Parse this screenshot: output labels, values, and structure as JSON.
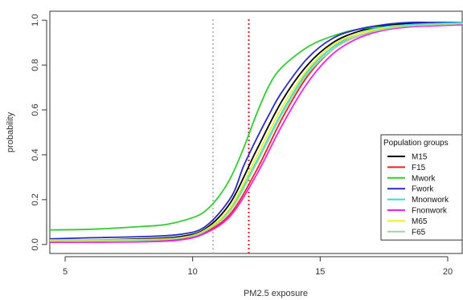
{
  "chart_data": {
    "type": "line",
    "title": "",
    "xlabel": "PM2.5 exposure",
    "ylabel": "probability",
    "xlim": [
      4.4,
      20.6
    ],
    "ylim": [
      -0.04,
      1.04
    ],
    "xticks": [
      5,
      10,
      15,
      20
    ],
    "yticks": [
      0.0,
      0.2,
      0.4,
      0.6,
      0.8,
      1.0
    ],
    "xtick_labels": [
      "5",
      "10",
      "15",
      "20"
    ],
    "ytick_labels": [
      "0.0",
      "0.2",
      "0.4",
      "0.6",
      "0.8",
      "1.0"
    ],
    "grid": false,
    "legend": {
      "title": "Population groups",
      "placement": "bottom-right"
    },
    "reference_lines": [
      {
        "x": 10.8,
        "color": "#bbbbbb",
        "style": "dotted"
      },
      {
        "x": 12.2,
        "color": "#e02020",
        "style": "dotted"
      }
    ],
    "series": [
      {
        "name": "M15",
        "color": "#000000",
        "x": [
          4.4,
          6,
          8,
          9.5,
          10.5,
          11.5,
          12.5,
          13.5,
          14.5,
          15.5,
          16.5,
          17.5,
          18.5,
          19.5,
          20.6
        ],
        "y": [
          0.02,
          0.02,
          0.025,
          0.035,
          0.07,
          0.19,
          0.42,
          0.64,
          0.8,
          0.9,
          0.95,
          0.975,
          0.985,
          0.99,
          0.99
        ]
      },
      {
        "name": "F15",
        "color": "#ee2020",
        "x": [
          4.4,
          6,
          8,
          9.5,
          10.5,
          11.5,
          12.5,
          13.5,
          14.5,
          15.5,
          16.5,
          17.5,
          18.5,
          19.5,
          20.6
        ],
        "y": [
          0.01,
          0.01,
          0.015,
          0.025,
          0.055,
          0.14,
          0.33,
          0.56,
          0.75,
          0.87,
          0.93,
          0.96,
          0.975,
          0.98,
          0.985
        ]
      },
      {
        "name": "Mwork",
        "color": "#33cc33",
        "x": [
          4.4,
          6,
          8,
          9,
          10,
          10.5,
          11,
          11.5,
          12,
          12.5,
          13,
          13.5,
          14.5,
          15.5,
          16.5,
          17.5,
          18.5,
          19.5,
          20.6
        ],
        "y": [
          0.065,
          0.068,
          0.08,
          0.09,
          0.12,
          0.15,
          0.21,
          0.3,
          0.43,
          0.58,
          0.71,
          0.79,
          0.88,
          0.93,
          0.96,
          0.97,
          0.975,
          0.98,
          0.98
        ]
      },
      {
        "name": "Fwork",
        "color": "#2a2ac8",
        "x": [
          4.4,
          6,
          8,
          9.5,
          10.5,
          11.5,
          12,
          12.5,
          13,
          13.5,
          14.5,
          15.5,
          16.5,
          17.5,
          18.5,
          19.5,
          20.6
        ],
        "y": [
          0.025,
          0.03,
          0.035,
          0.045,
          0.08,
          0.21,
          0.35,
          0.47,
          0.58,
          0.68,
          0.83,
          0.92,
          0.96,
          0.98,
          0.99,
          0.99,
          0.99
        ]
      },
      {
        "name": "Mnonwork",
        "color": "#33dddd",
        "x": [
          4.4,
          6,
          8,
          9.5,
          10.5,
          11.5,
          12.5,
          13.5,
          14.5,
          15.5,
          16.5,
          17.5,
          18.5,
          19.5,
          20.6
        ],
        "y": [
          0.015,
          0.015,
          0.02,
          0.03,
          0.06,
          0.16,
          0.37,
          0.59,
          0.77,
          0.88,
          0.94,
          0.97,
          0.98,
          0.985,
          0.99
        ]
      },
      {
        "name": "Fnonwork",
        "color": "#ee22ee",
        "x": [
          4.4,
          6,
          8,
          9.5,
          10.5,
          11.5,
          12.5,
          13.5,
          14.5,
          15.5,
          16.5,
          17.5,
          18.5,
          19.5,
          20.6
        ],
        "y": [
          0.01,
          0.01,
          0.012,
          0.02,
          0.05,
          0.13,
          0.31,
          0.53,
          0.72,
          0.85,
          0.92,
          0.955,
          0.97,
          0.975,
          0.98
        ]
      },
      {
        "name": "M65",
        "color": "#eeee22",
        "x": [
          4.4,
          6,
          8,
          9.5,
          10.5,
          11.5,
          12.5,
          13.5,
          14.5,
          15.5,
          16.5,
          17.5,
          18.5,
          19.5,
          20.6
        ],
        "y": [
          0.02,
          0.02,
          0.022,
          0.03,
          0.065,
          0.17,
          0.39,
          0.61,
          0.78,
          0.89,
          0.94,
          0.965,
          0.975,
          0.98,
          0.985
        ]
      },
      {
        "name": "F65",
        "color": "#9ad99a",
        "x": [
          4.4,
          6,
          8,
          9.5,
          10.5,
          11.5,
          12.5,
          13.5,
          14.5,
          15.5,
          16.5,
          17.5,
          18.5,
          19.5,
          20.6
        ],
        "y": [
          0.015,
          0.015,
          0.018,
          0.028,
          0.06,
          0.155,
          0.36,
          0.58,
          0.76,
          0.87,
          0.93,
          0.96,
          0.975,
          0.98,
          0.985
        ]
      }
    ]
  }
}
